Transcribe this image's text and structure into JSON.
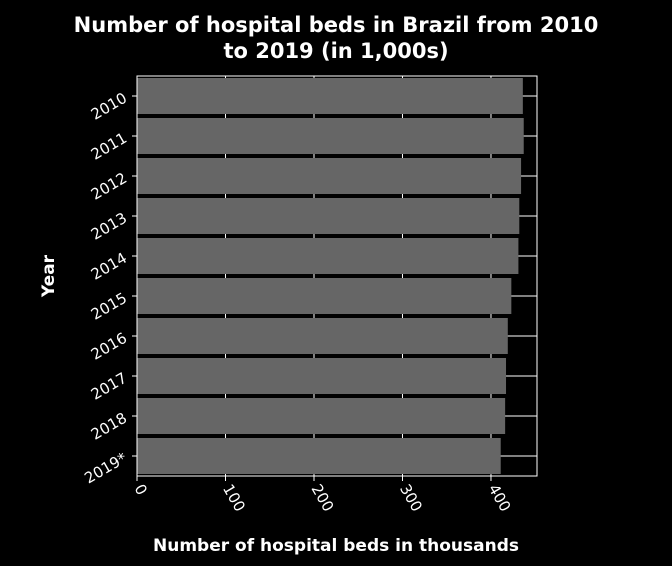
{
  "chart_data": {
    "type": "bar",
    "orientation": "horizontal",
    "title_line1": "Number of hospital beds in Brazil from 2010",
    "title_line2": "to 2019 (in 1,000s)",
    "xlabel": "Number of hospital beds in thousands",
    "ylabel": "Year",
    "categories": [
      "2010",
      "2011",
      "2012",
      "2013",
      "2014",
      "2015",
      "2016",
      "2017",
      "2018",
      "2019*"
    ],
    "values": [
      436,
      437,
      434,
      432,
      431,
      423,
      419,
      417,
      416,
      411
    ],
    "xlim": [
      0,
      452
    ],
    "xticks": [
      0,
      100,
      200,
      300,
      400
    ],
    "grid": true,
    "colors": {
      "background": "#000000",
      "plot_background": "#000000",
      "bar": "#666666",
      "grid": "#ffffff",
      "text": "#ffffff"
    }
  }
}
